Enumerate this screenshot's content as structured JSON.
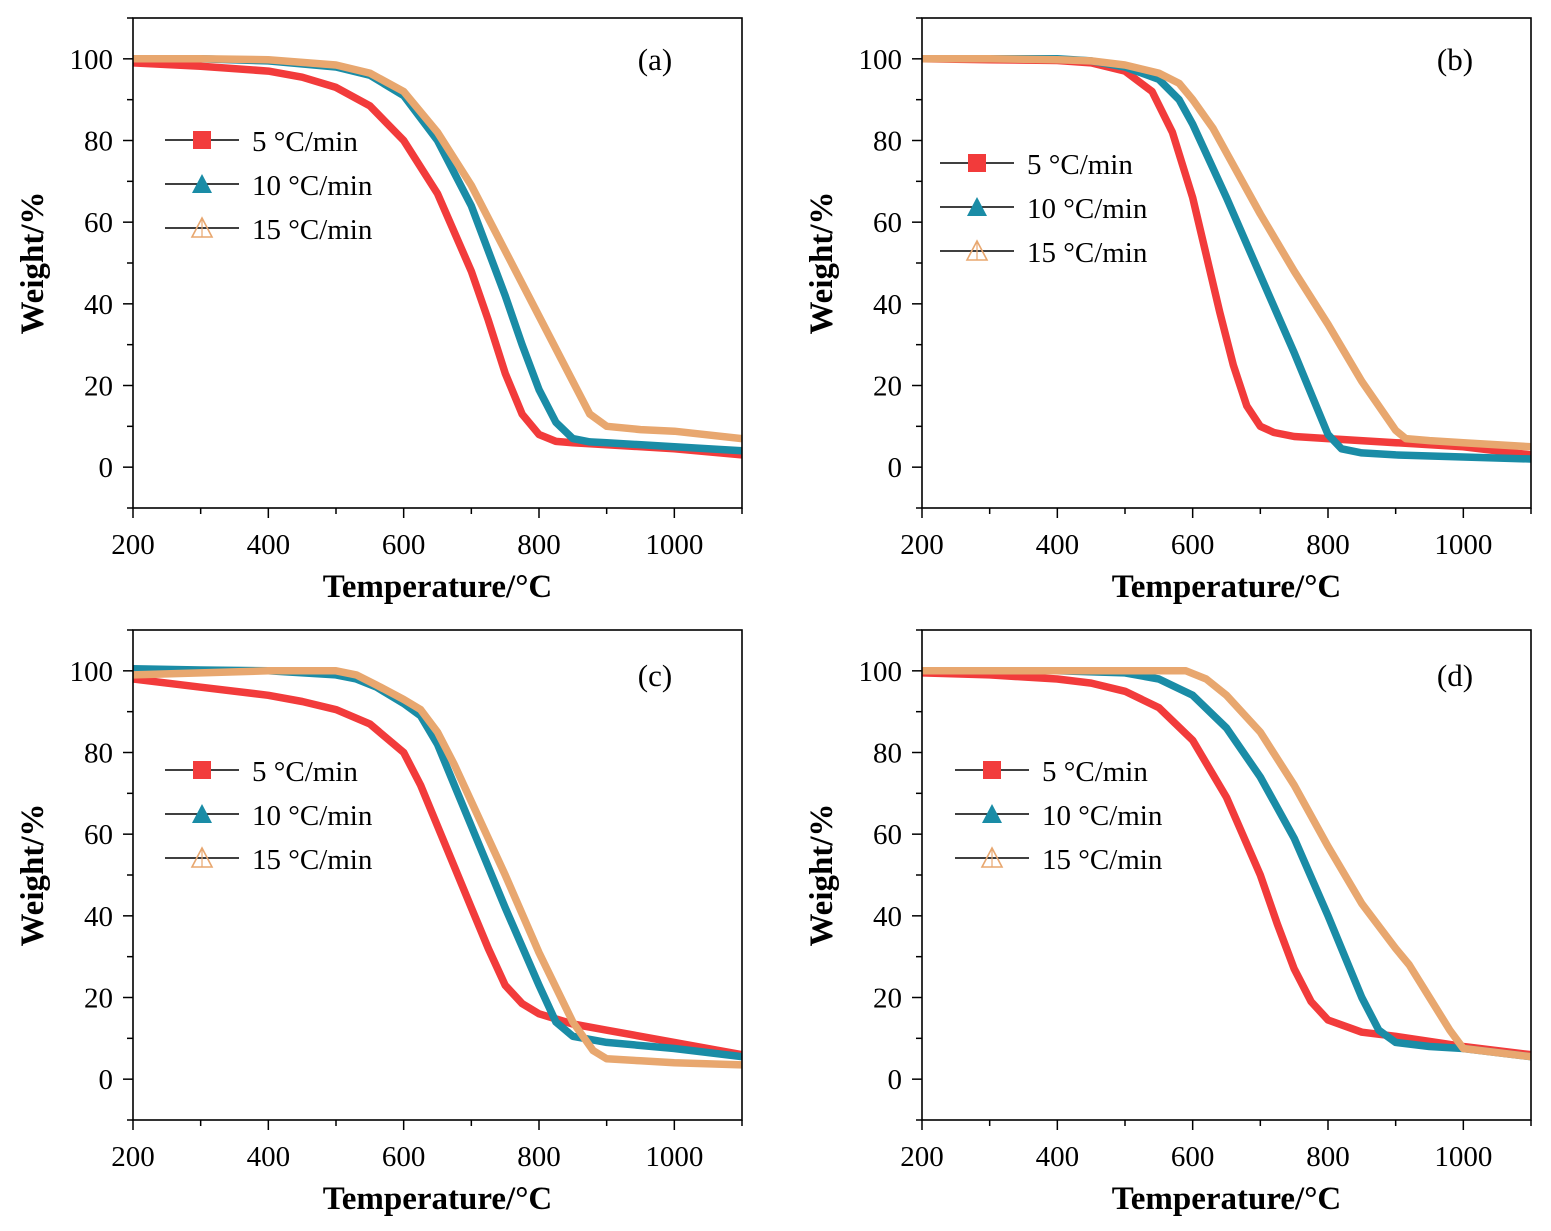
{
  "chart_data": [
    {
      "type": "line",
      "panel_label": "(a)",
      "xlabel": "Temperature/°C",
      "ylabel": "Weight/%",
      "xlim": [
        200,
        1100
      ],
      "ylim": [
        -10,
        110
      ],
      "xticks": [
        200,
        400,
        600,
        800,
        1000
      ],
      "yticks": [
        0,
        20,
        40,
        60,
        80,
        100
      ],
      "legend_position": "upper-left",
      "series": [
        {
          "name": "5 °C/min",
          "color": "#F23B3B",
          "marker": "filled-square",
          "x": [
            200,
            300,
            400,
            450,
            500,
            550,
            600,
            650,
            700,
            725,
            750,
            775,
            800,
            825,
            850,
            900,
            1000,
            1100
          ],
          "y": [
            99,
            98.2,
            97,
            95.5,
            93,
            88.5,
            80,
            67,
            48,
            36,
            23,
            13,
            8,
            6.3,
            6,
            5.5,
            4.5,
            3
          ]
        },
        {
          "name": "10 °C/min",
          "color": "#1A8CA6",
          "marker": "filled-triangle",
          "x": [
            200,
            300,
            400,
            500,
            550,
            600,
            650,
            700,
            750,
            775,
            800,
            825,
            850,
            875,
            900,
            1000,
            1100
          ],
          "y": [
            100,
            100,
            99.5,
            98,
            96,
            91,
            80,
            64,
            42,
            30,
            19,
            11,
            7,
            6.2,
            6,
            5,
            4
          ]
        },
        {
          "name": "15 °C/min",
          "color": "#E8A76F",
          "marker": "open-triangle",
          "x": [
            200,
            300,
            400,
            500,
            550,
            600,
            650,
            700,
            750,
            800,
            850,
            875,
            900,
            950,
            1000,
            1100
          ],
          "y": [
            100,
            100,
            99.8,
            98.5,
            96.5,
            92,
            82,
            69,
            53,
            37,
            21,
            13,
            10,
            9.2,
            8.8,
            7
          ]
        }
      ]
    },
    {
      "type": "line",
      "panel_label": "(b)",
      "xlabel": "Temperature/°C",
      "ylabel": "Weight/%",
      "xlim": [
        200,
        1100
      ],
      "ylim": [
        -10,
        110
      ],
      "xticks": [
        200,
        400,
        600,
        800,
        1000
      ],
      "yticks": [
        0,
        20,
        40,
        60,
        80,
        100
      ],
      "legend_position": "upper-left",
      "series": [
        {
          "name": "5 °C/min",
          "color": "#F23B3B",
          "marker": "filled-square",
          "x": [
            200,
            300,
            400,
            450,
            500,
            540,
            570,
            600,
            620,
            640,
            660,
            680,
            700,
            720,
            750,
            800,
            900,
            1000,
            1100
          ],
          "y": [
            100,
            99.8,
            99.6,
            99,
            97,
            92,
            82,
            66,
            52,
            38,
            25,
            15,
            10,
            8.5,
            7.5,
            7,
            6,
            5,
            3
          ]
        },
        {
          "name": "10 °C/min",
          "color": "#1A8CA6",
          "marker": "filled-triangle",
          "x": [
            200,
            300,
            400,
            450,
            500,
            550,
            580,
            600,
            650,
            700,
            750,
            775,
            800,
            820,
            850,
            900,
            1000,
            1100
          ],
          "y": [
            100,
            100,
            100,
            99.5,
            98,
            95,
            90,
            84,
            66,
            47,
            28,
            18,
            8,
            4.5,
            3.5,
            3,
            2.5,
            2
          ]
        },
        {
          "name": "15 °C/min",
          "color": "#E8A76F",
          "marker": "open-triangle",
          "x": [
            200,
            300,
            400,
            450,
            500,
            550,
            580,
            600,
            630,
            650,
            700,
            750,
            800,
            850,
            900,
            915,
            950,
            1000,
            1100
          ],
          "y": [
            100,
            100,
            99.8,
            99.5,
            98.5,
            96.5,
            94,
            90,
            83,
            77,
            62,
            48,
            35,
            21,
            9,
            7,
            6.5,
            6,
            5
          ]
        }
      ]
    },
    {
      "type": "line",
      "panel_label": "(c)",
      "xlabel": "Temperature/°C",
      "ylabel": "Weight/%",
      "xlim": [
        200,
        1100
      ],
      "ylim": [
        -10,
        110
      ],
      "xticks": [
        200,
        400,
        600,
        800,
        1000
      ],
      "yticks": [
        0,
        20,
        40,
        60,
        80,
        100
      ],
      "legend_position": "middle-left",
      "series": [
        {
          "name": "5 °C/min",
          "color": "#F23B3B",
          "marker": "filled-square",
          "x": [
            200,
            300,
            400,
            450,
            500,
            550,
            600,
            625,
            650,
            675,
            700,
            725,
            750,
            775,
            800,
            850,
            900,
            1000,
            1100
          ],
          "y": [
            98,
            96,
            94,
            92.5,
            90.5,
            87,
            80,
            72,
            62,
            52,
            42,
            32,
            23,
            18.5,
            16,
            13.5,
            12,
            9,
            6
          ]
        },
        {
          "name": "10 °C/min",
          "color": "#1A8CA6",
          "marker": "filled-triangle",
          "x": [
            200,
            300,
            400,
            500,
            530,
            560,
            600,
            625,
            650,
            675,
            700,
            750,
            800,
            825,
            850,
            900,
            1000,
            1100
          ],
          "y": [
            100.5,
            100.2,
            100,
            99,
            98,
            96,
            92,
            89,
            82,
            72,
            62,
            42,
            23,
            14,
            10.5,
            9,
            7.5,
            5.5
          ]
        },
        {
          "name": "15 °C/min",
          "color": "#E8A76F",
          "marker": "open-triangle",
          "x": [
            200,
            300,
            400,
            500,
            530,
            560,
            600,
            625,
            650,
            675,
            700,
            750,
            800,
            850,
            880,
            900,
            950,
            1000,
            1100
          ],
          "y": [
            99,
            99.5,
            100,
            100,
            99,
            96.5,
            93,
            90.5,
            85,
            77,
            68,
            50,
            31,
            14,
            7,
            5,
            4.5,
            4,
            3.5
          ]
        }
      ]
    },
    {
      "type": "line",
      "panel_label": "(d)",
      "xlabel": "Temperature/°C",
      "ylabel": "Weight/%",
      "xlim": [
        200,
        1100
      ],
      "ylim": [
        -10,
        110
      ],
      "xticks": [
        200,
        400,
        600,
        800,
        1000
      ],
      "yticks": [
        0,
        20,
        40,
        60,
        80,
        100
      ],
      "legend_position": "middle-left",
      "series": [
        {
          "name": "5 °C/min",
          "color": "#F23B3B",
          "marker": "filled-square",
          "x": [
            200,
            300,
            400,
            450,
            500,
            550,
            600,
            650,
            700,
            725,
            750,
            775,
            800,
            850,
            900,
            1000,
            1100
          ],
          "y": [
            99.5,
            99,
            98,
            97,
            95,
            91,
            83,
            69,
            50,
            38,
            27,
            19,
            14.5,
            11.5,
            10.5,
            8,
            6
          ]
        },
        {
          "name": "10 °C/min",
          "color": "#1A8CA6",
          "marker": "filled-triangle",
          "x": [
            200,
            300,
            400,
            500,
            550,
            600,
            650,
            700,
            750,
            800,
            825,
            850,
            875,
            900,
            950,
            1000,
            1100
          ],
          "y": [
            100,
            100,
            100,
            99.5,
            98,
            94,
            86,
            74,
            59,
            40,
            30,
            20,
            12,
            9,
            8,
            7.5,
            5.5
          ]
        },
        {
          "name": "15 °C/min",
          "color": "#E8A76F",
          "marker": "open-triangle",
          "x": [
            200,
            300,
            400,
            500,
            590,
            620,
            650,
            700,
            750,
            800,
            850,
            900,
            920,
            950,
            980,
            1000,
            1050,
            1100
          ],
          "y": [
            100,
            100,
            100,
            100,
            100,
            98,
            94,
            85,
            72,
            57,
            43,
            32,
            28,
            20,
            12,
            7.5,
            6.5,
            5.5
          ]
        }
      ]
    }
  ]
}
